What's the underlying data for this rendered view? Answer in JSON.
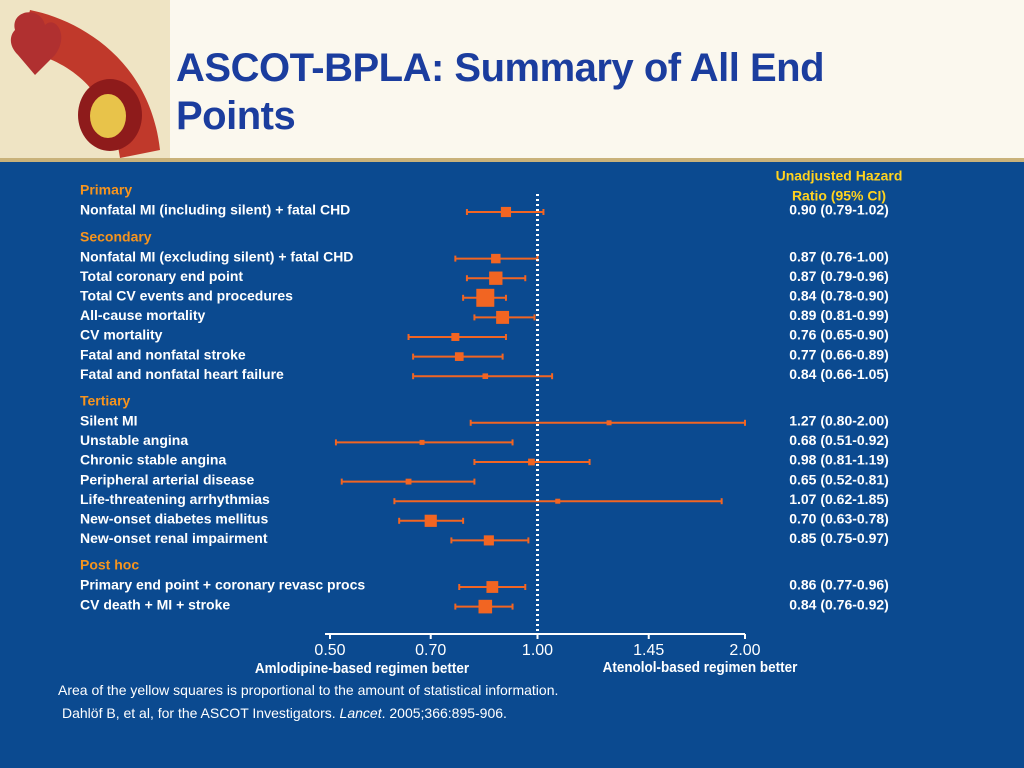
{
  "chart_data": {
    "type": "forest",
    "title": "ASCOT-BPLA: Summary of All End Points",
    "column_header": [
      "Unadjusted Hazard",
      "Ratio (95% CI)"
    ],
    "xscale": "log",
    "xlim": [
      0.5,
      2.0
    ],
    "xticks": [
      {
        "value": 0.5,
        "label": "0.50"
      },
      {
        "value": 0.7,
        "label": "0.70"
      },
      {
        "value": 1.0,
        "label": "1.00"
      },
      1.45,
      {
        "value": 2.0,
        "label": "2.00"
      }
    ],
    "reference": 1.0,
    "color": "#f26522",
    "left_label": "Amlodipine-based regimen better",
    "right_label": "Atenolol-based regimen better",
    "groups": [
      {
        "name": "Primary",
        "rows": [
          {
            "label": "Nonfatal MI (including silent) + fatal CHD",
            "value": 0.9,
            "low": 0.79,
            "high": 1.02,
            "value_label": "0.90 (0.79-1.02)"
          }
        ]
      },
      {
        "name": "Secondary",
        "rows": [
          {
            "label": "Nonfatal MI (excluding silent) + fatal CHD",
            "value": 0.87,
            "low": 0.76,
            "high": 1.0,
            "value_label": "0.87 (0.76-1.00)"
          },
          {
            "label": "Total coronary end point",
            "value": 0.87,
            "low": 0.79,
            "high": 0.96,
            "value_label": "0.87 (0.79-0.96)"
          },
          {
            "label": "Total CV events and procedures",
            "value": 0.84,
            "low": 0.78,
            "high": 0.9,
            "value_label": "0.84 (0.78-0.90)"
          },
          {
            "label": "All-cause mortality",
            "value": 0.89,
            "low": 0.81,
            "high": 0.99,
            "value_label": "0.89 (0.81-0.99)"
          },
          {
            "label": "CV mortality",
            "value": 0.76,
            "low": 0.65,
            "high": 0.9,
            "value_label": "0.76 (0.65-0.90)"
          },
          {
            "label": "Fatal and nonfatal stroke",
            "value": 0.77,
            "low": 0.66,
            "high": 0.89,
            "value_label": "0.77 (0.66-0.89)"
          },
          {
            "label": "Fatal and nonfatal heart failure",
            "value": 0.84,
            "low": 0.66,
            "high": 1.05,
            "value_label": "0.84 (0.66-1.05)"
          }
        ]
      },
      {
        "name": "Tertiary",
        "rows": [
          {
            "label": "Silent MI",
            "value": 1.27,
            "low": 0.8,
            "high": 2.0,
            "value_label": "1.27 (0.80-2.00)"
          },
          {
            "label": "Unstable angina",
            "value": 0.68,
            "low": 0.51,
            "high": 0.92,
            "value_label": "0.68 (0.51-0.92)"
          },
          {
            "label": "Chronic stable angina",
            "value": 0.98,
            "low": 0.81,
            "high": 1.19,
            "value_label": "0.98 (0.81-1.19)"
          },
          {
            "label": "Peripheral arterial disease",
            "value": 0.65,
            "low": 0.52,
            "high": 0.81,
            "value_label": "0.65 (0.52-0.81)"
          },
          {
            "label": "Life-threatening arrhythmias",
            "value": 1.07,
            "low": 0.62,
            "high": 1.85,
            "value_label": "1.07 (0.62-1.85)"
          },
          {
            "label": "New-onset diabetes mellitus",
            "value": 0.7,
            "low": 0.63,
            "high": 0.78,
            "value_label": "0.70 (0.63-0.78)"
          },
          {
            "label": "New-onset renal impairment",
            "value": 0.85,
            "low": 0.75,
            "high": 0.97,
            "value_label": "0.85 (0.75-0.97)"
          }
        ]
      },
      {
        "name": "Post hoc",
        "rows": [
          {
            "label": "Primary end point + coronary revasc procs",
            "value": 0.86,
            "low": 0.77,
            "high": 0.96,
            "value_label": "0.86 (0.77-0.96)"
          },
          {
            "label": "CV death + MI + stroke",
            "value": 0.84,
            "low": 0.76,
            "high": 0.92,
            "value_label": "0.84 (0.76-0.92)"
          }
        ]
      }
    ],
    "footnote": "Area of the yellow squares is proportional to the amount of statistical information.",
    "citation": {
      "authors": "Dahlöf B, et al, for the ASCOT Investigators.",
      "journal": "Lancet",
      "details": ". 2005;366:895-906."
    }
  }
}
